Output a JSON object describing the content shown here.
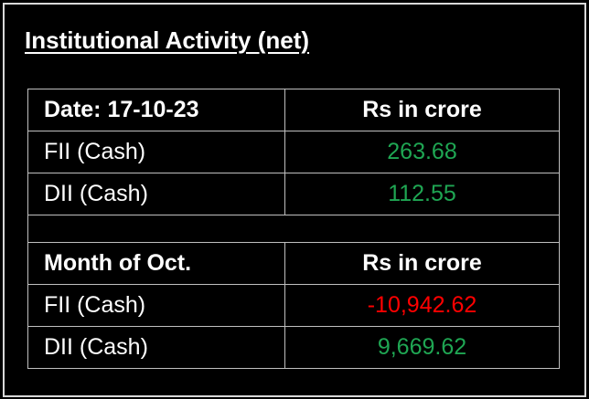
{
  "title": "Institutional Activity (net)",
  "sections": [
    {
      "header": [
        "Date: 17-10-23",
        "Rs in crore"
      ],
      "rows": [
        {
          "label": "FII (Cash)",
          "value": "263.68",
          "color": "#1fa653"
        },
        {
          "label": "DII (Cash)",
          "value": "112.55",
          "color": "#1fa653"
        }
      ]
    },
    {
      "header": [
        "Month of Oct.",
        "Rs in crore"
      ],
      "rows": [
        {
          "label": "FII (Cash)",
          "value": "-10,942.62",
          "color": "#ff0000"
        },
        {
          "label": "DII (Cash)",
          "value": "9,669.62",
          "color": "#1fa653"
        }
      ]
    }
  ]
}
